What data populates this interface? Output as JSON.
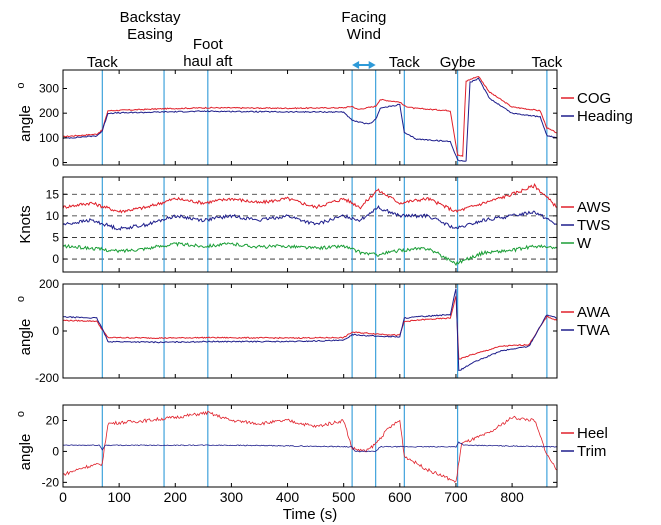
{
  "chart_data": {
    "type": "line",
    "xlabel": "Time (s)",
    "xlim": [
      0,
      880
    ],
    "xticks": [
      0,
      100,
      200,
      300,
      400,
      500,
      600,
      700,
      800
    ],
    "event_lines": [
      70,
      180,
      258,
      515,
      557,
      608,
      703,
      862
    ],
    "event_labels": [
      {
        "lines": [
          "Tack"
        ],
        "x": 70
      },
      {
        "lines": [
          "Backstay",
          "Easing"
        ],
        "x": 180
      },
      {
        "lines": [
          "Foot",
          "haul aft"
        ],
        "x": 258
      },
      {
        "lines": [
          "Facing",
          "Wind"
        ],
        "x": 536
      },
      {
        "lines": [
          "Tack"
        ],
        "x": 608
      },
      {
        "lines": [
          "Gybe"
        ],
        "x": 703
      },
      {
        "lines": [
          "Tack"
        ],
        "x": 862
      }
    ],
    "facing_wind_span": [
      515,
      557
    ],
    "colors": {
      "red": "#e0202a",
      "navy": "#1e1e8c",
      "green": "#1a9e36",
      "event": "#2e9ad8"
    },
    "panels": [
      {
        "ylabel": "angle o",
        "ylim": [
          -10,
          375
        ],
        "yticks": [
          0,
          100,
          200,
          300
        ],
        "dashed_grid": [],
        "series": [
          {
            "name": "COG",
            "color": "#e0202a",
            "points": [
              [
                0,
                105
              ],
              [
                60,
                115
              ],
              [
                70,
                132
              ],
              [
                80,
                210
              ],
              [
                180,
                218
              ],
              [
                258,
                222
              ],
              [
                400,
                220
              ],
              [
                500,
                222
              ],
              [
                515,
                228
              ],
              [
                525,
                215
              ],
              [
                557,
                228
              ],
              [
                565,
                255
              ],
              [
                600,
                245
              ],
              [
                608,
                230
              ],
              [
                625,
                220
              ],
              [
                690,
                210
              ],
              [
                703,
                30
              ],
              [
                712,
                25
              ],
              [
                718,
                330
              ],
              [
                740,
                350
              ],
              [
                760,
                285
              ],
              [
                800,
                225
              ],
              [
                850,
                210
              ],
              [
                862,
                140
              ],
              [
                880,
                120
              ]
            ]
          },
          {
            "name": "Heading",
            "color": "#1e1e8c",
            "points": [
              [
                0,
                98
              ],
              [
                60,
                108
              ],
              [
                70,
                128
              ],
              [
                80,
                200
              ],
              [
                180,
                205
              ],
              [
                258,
                208
              ],
              [
                400,
                205
              ],
              [
                500,
                205
              ],
              [
                515,
                170
              ],
              [
                545,
                155
              ],
              [
                557,
                175
              ],
              [
                565,
                220
              ],
              [
                600,
                235
              ],
              [
                608,
                120
              ],
              [
                630,
                95
              ],
              [
                690,
                85
              ],
              [
                703,
                10
              ],
              [
                718,
                5
              ],
              [
                725,
                325
              ],
              [
                740,
                340
              ],
              [
                760,
                260
              ],
              [
                800,
                200
              ],
              [
                850,
                185
              ],
              [
                862,
                110
              ],
              [
                880,
                100
              ]
            ]
          }
        ]
      },
      {
        "ylabel": "Knots",
        "ylim": [
          -3,
          19
        ],
        "yticks": [
          0,
          5,
          10,
          15
        ],
        "dashed_grid": [
          0,
          5,
          10,
          15
        ],
        "series": [
          {
            "name": "AWS",
            "color": "#e0202a",
            "points": [
              [
                0,
                12
              ],
              [
                50,
                13
              ],
              [
                100,
                11
              ],
              [
                150,
                12
              ],
              [
                200,
                14
              ],
              [
                250,
                13
              ],
              [
                300,
                14
              ],
              [
                350,
                13
              ],
              [
                400,
                14
              ],
              [
                450,
                12
              ],
              [
                500,
                14
              ],
              [
                530,
                12
              ],
              [
                560,
                16
              ],
              [
                600,
                13
              ],
              [
                650,
                14
              ],
              [
                700,
                11
              ],
              [
                750,
                13
              ],
              [
                800,
                15
              ],
              [
                840,
                17
              ],
              [
                880,
                12
              ]
            ]
          },
          {
            "name": "TWS",
            "color": "#1e1e8c",
            "points": [
              [
                0,
                8
              ],
              [
                50,
                9
              ],
              [
                100,
                7
              ],
              [
                150,
                8
              ],
              [
                200,
                10
              ],
              [
                250,
                9
              ],
              [
                300,
                10
              ],
              [
                350,
                9
              ],
              [
                400,
                10
              ],
              [
                450,
                8
              ],
              [
                500,
                10
              ],
              [
                530,
                9
              ],
              [
                560,
                12
              ],
              [
                600,
                10
              ],
              [
                650,
                10
              ],
              [
                700,
                7
              ],
              [
                750,
                9
              ],
              [
                800,
                10
              ],
              [
                840,
                11
              ],
              [
                880,
                8
              ]
            ]
          },
          {
            "name": "W",
            "color": "#1a9e36",
            "points": [
              [
                0,
                3
              ],
              [
                50,
                2.5
              ],
              [
                100,
                1.8
              ],
              [
                150,
                2.5
              ],
              [
                200,
                3.5
              ],
              [
                250,
                3
              ],
              [
                300,
                3.5
              ],
              [
                350,
                2.8
              ],
              [
                400,
                3
              ],
              [
                450,
                2.5
              ],
              [
                500,
                3
              ],
              [
                530,
                1.5
              ],
              [
                560,
                1
              ],
              [
                600,
                2
              ],
              [
                650,
                2.5
              ],
              [
                700,
                -1
              ],
              [
                750,
                1.5
              ],
              [
                800,
                2
              ],
              [
                840,
                3
              ],
              [
                880,
                2.5
              ]
            ]
          }
        ]
      },
      {
        "ylabel": "angle o",
        "ylim": [
          -200,
          200
        ],
        "yticks": [
          -200,
          0,
          200
        ],
        "dashed_grid": [],
        "series": [
          {
            "name": "AWA",
            "color": "#e0202a",
            "points": [
              [
                0,
                45
              ],
              [
                60,
                42
              ],
              [
                70,
                5
              ],
              [
                80,
                -28
              ],
              [
                180,
                -30
              ],
              [
                258,
                -28
              ],
              [
                400,
                -30
              ],
              [
                500,
                -28
              ],
              [
                515,
                -5
              ],
              [
                557,
                -12
              ],
              [
                600,
                -18
              ],
              [
                608,
                40
              ],
              [
                640,
                48
              ],
              [
                690,
                55
              ],
              [
                700,
                150
              ],
              [
                705,
                -120
              ],
              [
                730,
                -100
              ],
              [
                780,
                -65
              ],
              [
                830,
                -58
              ],
              [
                862,
                62
              ],
              [
                880,
                45
              ]
            ]
          },
          {
            "name": "TWA",
            "color": "#1e1e8c",
            "points": [
              [
                0,
                60
              ],
              [
                60,
                55
              ],
              [
                70,
                10
              ],
              [
                80,
                -45
              ],
              [
                180,
                -48
              ],
              [
                258,
                -45
              ],
              [
                400,
                -45
              ],
              [
                500,
                -40
              ],
              [
                515,
                -15
              ],
              [
                557,
                -22
              ],
              [
                600,
                -25
              ],
              [
                608,
                55
              ],
              [
                640,
                62
              ],
              [
                690,
                70
              ],
              [
                700,
                180
              ],
              [
                705,
                -170
              ],
              [
                730,
                -135
              ],
              [
                780,
                -85
              ],
              [
                830,
                -65
              ],
              [
                862,
                70
              ],
              [
                880,
                55
              ]
            ]
          }
        ]
      },
      {
        "ylabel": "angle o",
        "ylim": [
          -23,
          30
        ],
        "yticks": [
          -20,
          0,
          20
        ],
        "dashed_grid": [],
        "series": [
          {
            "name": "Heel",
            "color": "#e0202a",
            "points": [
              [
                0,
                -15
              ],
              [
                40,
                -10
              ],
              [
                70,
                -8
              ],
              [
                80,
                18
              ],
              [
                150,
                20
              ],
              [
                200,
                22
              ],
              [
                258,
                25
              ],
              [
                300,
                20
              ],
              [
                350,
                18
              ],
              [
                400,
                20
              ],
              [
                450,
                16
              ],
              [
                500,
                20
              ],
              [
                515,
                2
              ],
              [
                540,
                0
              ],
              [
                557,
                5
              ],
              [
                580,
                15
              ],
              [
                600,
                20
              ],
              [
                608,
                -3
              ],
              [
                650,
                -12
              ],
              [
                690,
                -18
              ],
              [
                700,
                -20
              ],
              [
                710,
                5
              ],
              [
                760,
                12
              ],
              [
                800,
                22
              ],
              [
                840,
                20
              ],
              [
                862,
                -2
              ],
              [
                880,
                -12
              ]
            ]
          },
          {
            "name": "Trim",
            "color": "#1e1e8c",
            "points": [
              [
                0,
                4
              ],
              [
                65,
                4
              ],
              [
                70,
                1
              ],
              [
                75,
                4
              ],
              [
                300,
                4
              ],
              [
                515,
                3
              ],
              [
                520,
                0
              ],
              [
                557,
                0
              ],
              [
                565,
                3
              ],
              [
                700,
                3
              ],
              [
                705,
                6
              ],
              [
                715,
                4
              ],
              [
                880,
                3
              ]
            ]
          }
        ]
      }
    ]
  }
}
